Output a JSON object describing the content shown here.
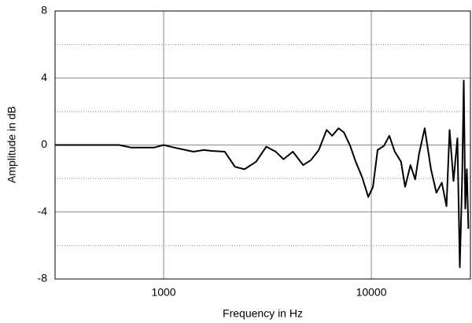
{
  "chart_data": {
    "type": "line",
    "xlabel": "Frequency in Hz",
    "ylabel": "Amplitude in dB",
    "x": [
      300,
      610,
      695,
      901,
      1000,
      1120,
      1276,
      1391,
      1557,
      1700,
      1970,
      2204,
      2448,
      2786,
      3120,
      3465,
      3776,
      4190,
      4697,
      5120,
      5586,
      6092,
      6480,
      6950,
      7380,
      7909,
      8410,
      9016,
      9667,
      10180,
      10720,
      11500,
      12210,
      12970,
      13900,
      14540,
      15430,
      16260,
      16990,
      18070,
      19370,
      20570,
      21850,
      23010,
      23810,
      24870,
      25970,
      26670,
      27380,
      27860,
      28340,
      28830,
      29330
    ],
    "values": [
      0,
      0,
      -0.15,
      -0.15,
      0,
      -0.15,
      -0.3,
      -0.4,
      -0.3,
      -0.35,
      -0.4,
      -1.3,
      -1.45,
      -1.0,
      -0.1,
      -0.4,
      -0.85,
      -0.4,
      -1.2,
      -0.9,
      -0.3,
      0.9,
      0.55,
      1.0,
      0.75,
      -0.05,
      -1.0,
      -1.9,
      -3.1,
      -2.5,
      -0.3,
      -0.05,
      0.55,
      -0.4,
      -1.0,
      -2.5,
      -1.2,
      -2.05,
      -0.5,
      1.0,
      -1.45,
      -2.85,
      -2.25,
      -3.65,
      0.9,
      -2.15,
      0.4,
      -7.3,
      -1.9,
      3.85,
      -3.8,
      -1.45,
      -5.0
    ],
    "color": "#000000",
    "xscale": "log",
    "xlim": [
      300,
      30000
    ],
    "xticks": [
      1000,
      10000
    ],
    "ylim": [
      -8,
      8
    ],
    "yticks": [
      8,
      4,
      0,
      -4,
      -8
    ],
    "minor_yticks": [
      6,
      2,
      -2,
      -6
    ],
    "grid": true
  }
}
